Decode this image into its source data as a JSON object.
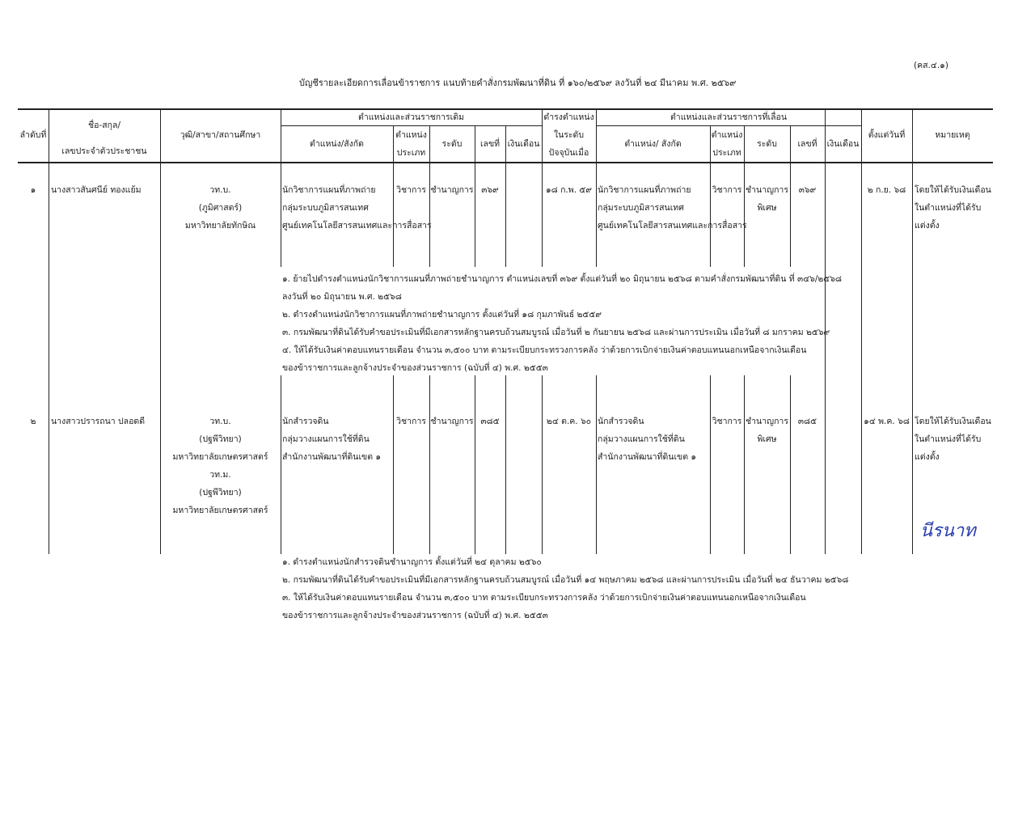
{
  "form_code": "(คส.๔.๑)",
  "title": "บัญชีรายละเอียดการเลื่อนข้าราชการ แนบท้ายคำสั่งกรมพัฒนาที่ดิน ที่ ๑๖๐/๒๕๖๙  ลงวันที่  ๒๔  มีนาคม พ.ศ. ๒๕๖๙",
  "headers": {
    "no": "ลำดับที่",
    "name_1": "ชื่อ-สกุล/",
    "name_2": "เลขประจำตัวประชาชน",
    "education": "วุฒิ/สาขา/สถานศึกษา",
    "old_group": "ตำแหน่งและส่วนราชการเดิม",
    "position": "ตำแหน่ง/สังกัด",
    "type_1": "ตำแหน่ง",
    "type_2": "ประเภท",
    "level": "ระดับ",
    "number": "เลขที่",
    "salary": "เงินเดือน",
    "current_1": "ดำรงตำแหน่ง",
    "current_2": "ในระดับ",
    "current_3": "ปัจจุบันเมื่อ",
    "new_group": "ตำแหน่งและส่วนราชการที่เลื่อน",
    "new_position": "ตำแหน่ง/ สังกัด",
    "since": "ตั้งแต่วันที่",
    "remarks": "หมายเหตุ"
  },
  "rows": [
    {
      "no": "๑",
      "name": "นางสาวสันศนีย์ ทองแย้ม",
      "education": [
        "วท.บ.",
        "(ภูมิศาสตร์)",
        "มหาวิทยาลัยทักษิณ"
      ],
      "old_position": [
        "นักวิชาการแผนที่ภาพถ่าย",
        "กลุ่มระบบภูมิสารสนเทศ",
        "ศูนย์เทคโนโลยีสารสนเทศและการสื่อสาร"
      ],
      "old_type": "วิชาการ",
      "old_level": "ชำนาญการ",
      "old_number": "๓๖๙",
      "old_salary": "",
      "current_since": "๑๘ ก.พ. ๕๙",
      "new_position": [
        "นักวิชาการแผนที่ภาพถ่าย",
        "กลุ่มระบบภูมิสารสนเทศ",
        "ศูนย์เทคโนโลยีสารสนเทศและการสื่อสาร"
      ],
      "new_type": "วิชาการ",
      "new_level": [
        "ชำนาญการ",
        "พิเศษ"
      ],
      "new_number": "๓๖๙",
      "new_salary": "",
      "since": "๒ ก.ย. ๖๘",
      "remarks": [
        "โดยให้ได้รับเงินเดือน",
        "ในตำแหน่งที่ได้รับ",
        "แต่งตั้ง"
      ],
      "notes": [
        "๑. ย้ายไปดำรงตำแหน่งนักวิชาการแผนที่ภาพถ่ายชำนาญการ ตำแหน่งเลขที่ ๓๖๙ ตั้งแต่วันที่ ๒๐ มิถุนายน ๒๕๖๘ ตามคำสั่งกรมพัฒนาที่ดิน ที่ ๓๔๖/๒๕๖๘",
        "    ลงวันที่ ๒๐ มิถุนายน พ.ศ. ๒๕๖๘",
        "๒. ดำรงตำแหน่งนักวิชาการแผนที่ภาพถ่ายชำนาญการ ตั้งแต่วันที่ ๑๘ กุมภาพันธ์ ๒๕๕๙",
        "๓. กรมพัฒนาที่ดินได้รับคำขอประเมินที่มีเอกสารหลักฐานครบถ้วนสมบูรณ์ เมื่อวันที่ ๒ กันยายน ๒๕๖๘ และผ่านการประเมิน เมื่อวันที่ ๘ มกราคม ๒๕๖๙",
        "๔. ให้ได้รับเงินค่าตอบแทนรายเดือน จำนวน ๓,๕๐๐ บาท ตามระเบียบกระทรวงการคลัง ว่าด้วยการเบิกจ่ายเงินค่าตอบแทนนอกเหนือจากเงินเดือน",
        "    ของข้าราชการและลูกจ้างประจำของส่วนราชการ (ฉบับที่ ๔) พ.ศ. ๒๕๕๓"
      ]
    },
    {
      "no": "๒",
      "name": "นางสาวปรารถนา ปลอดดี",
      "education": [
        "วท.บ.",
        "(ปฐพีวิทยา)",
        "มหาวิทยาลัยเกษตรศาสตร์",
        "วท.ม.",
        "(ปฐพีวิทยา)",
        "มหาวิทยาลัยเกษตรศาสตร์"
      ],
      "old_position": [
        "นักสำรวจดิน",
        "กลุ่มวางแผนการใช้ที่ดิน",
        "สำนักงานพัฒนาที่ดินเขต ๑"
      ],
      "old_type": "วิชาการ",
      "old_level": "ชำนาญการ",
      "old_number": "๓๘๕",
      "old_salary": "",
      "current_since": "๒๔ ต.ค. ๖๐",
      "new_position": [
        "นักสำรวจดิน",
        "กลุ่มวางแผนการใช้ที่ดิน",
        "สำนักงานพัฒนาที่ดินเขต ๑"
      ],
      "new_type": "วิชาการ",
      "new_level": [
        "ชำนาญการ",
        "พิเศษ"
      ],
      "new_number": "๓๘๕",
      "new_salary": "",
      "since": "๑๔ พ.ค. ๖๘",
      "remarks": [
        "โดยให้ได้รับเงินเดือน",
        "ในตำแหน่งที่ได้รับ",
        "แต่งตั้ง"
      ],
      "signature": "นีรนาท",
      "notes": [
        "๑. ดำรงตำแหน่งนักสำรวจดินชำนาญการ ตั้งแต่วันที่ ๒๔ ตุลาคม ๒๕๖๐",
        "๒. กรมพัฒนาที่ดินได้รับคำขอประเมินที่มีเอกสารหลักฐานครบถ้วนสมบูรณ์ เมื่อวันที่ ๑๔ พฤษภาคม ๒๕๖๘ และผ่านการประเมิน เมื่อวันที่ ๒๔ ธันวาคม ๒๕๖๘",
        "๓. ให้ได้รับเงินค่าตอบแทนรายเดือน จำนวน ๓,๕๐๐ บาท ตามระเบียบกระทรวงการคลัง ว่าด้วยการเบิกจ่ายเงินค่าตอบแทนนอกเหนือจากเงินเดือน",
        "    ของข้าราชการและลูกจ้างประจำของส่วนราชการ (ฉบับที่ ๔) พ.ศ. ๒๕๕๓"
      ]
    }
  ],
  "colors": {
    "ink": "#222222",
    "signature": "#2b3fb0"
  }
}
